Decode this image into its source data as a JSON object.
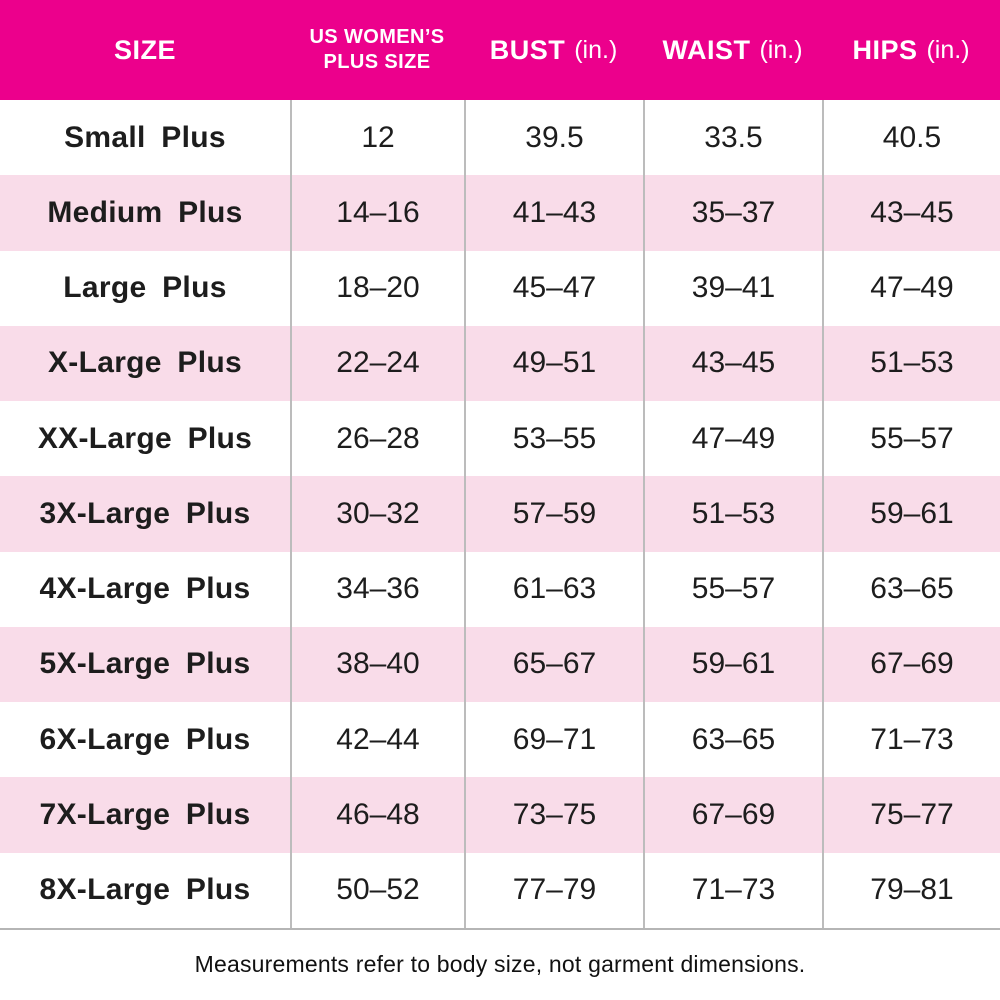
{
  "colors": {
    "header_background": "#ec008c",
    "header_text": "#ffffff",
    "stripe_pink": "#f9dce9",
    "row_white": "#ffffff",
    "gridline": "#bcbcbc",
    "body_text": "#1d1d1d"
  },
  "table": {
    "columns": [
      {
        "label": "SIZE",
        "unit": ""
      },
      {
        "label": "US WOMEN’S PLUS SIZE",
        "unit": ""
      },
      {
        "label": "BUST",
        "unit": "(in.)"
      },
      {
        "label": "WAIST",
        "unit": "(in.)"
      },
      {
        "label": "HIPS",
        "unit": "(in.)"
      }
    ],
    "rows": [
      [
        "Small Plus",
        "12",
        "39.5",
        "33.5",
        "40.5"
      ],
      [
        "Medium Plus",
        "14–16",
        "41–43",
        "35–37",
        "43–45"
      ],
      [
        "Large Plus",
        "18–20",
        "45–47",
        "39–41",
        "47–49"
      ],
      [
        "X-Large Plus",
        "22–24",
        "49–51",
        "43–45",
        "51–53"
      ],
      [
        "XX-Large Plus",
        "26–28",
        "53–55",
        "47–49",
        "55–57"
      ],
      [
        "3X-Large Plus",
        "30–32",
        "57–59",
        "51–53",
        "59–61"
      ],
      [
        "4X-Large Plus",
        "34–36",
        "61–63",
        "55–57",
        "63–65"
      ],
      [
        "5X-Large Plus",
        "38–40",
        "65–67",
        "59–61",
        "67–69"
      ],
      [
        "6X-Large Plus",
        "42–44",
        "69–71",
        "63–65",
        "71–73"
      ],
      [
        "7X-Large Plus",
        "46–48",
        "73–75",
        "67–69",
        "75–77"
      ],
      [
        "8X-Large Plus",
        "50–52",
        "77–79",
        "71–73",
        "79–81"
      ]
    ]
  },
  "footer": {
    "note": "Measurements refer to body size, not garment dimensions."
  }
}
